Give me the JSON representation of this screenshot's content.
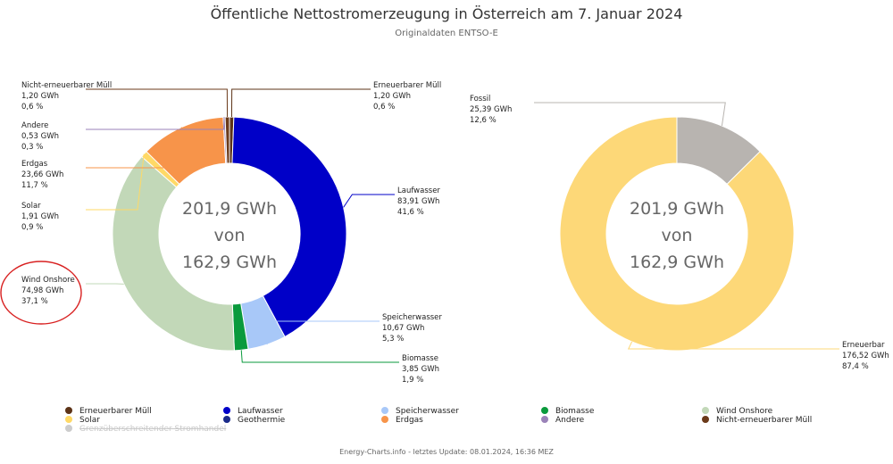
{
  "title": "Öffentliche Nettostromerzeugung in Österreich am 7. Januar 2024",
  "subtitle": "Originaldaten ENTSO-E",
  "footer": "Energy-Charts.info - letztes Update: 08.01.2024, 16:36 MEZ",
  "chart_data": [
    {
      "type": "pie",
      "variant": "donut",
      "center_text": [
        "201,9 GWh",
        "von",
        "162,9 GWh"
      ],
      "slices": [
        {
          "name": "Erneuerbarer Müll",
          "value": 1.2,
          "value_text": "1,20 GWh",
          "percent_text": "0,6 %",
          "color": "#5c3317"
        },
        {
          "name": "Laufwasser",
          "value": 83.91,
          "value_text": "83,91 GWh",
          "percent_text": "41,6 %",
          "color": "#0000c8"
        },
        {
          "name": "Speicherwasser",
          "value": 10.67,
          "value_text": "10,67 GWh",
          "percent_text": "5,3 %",
          "color": "#a8c8f8"
        },
        {
          "name": "Biomasse",
          "value": 3.85,
          "value_text": "3,85 GWh",
          "percent_text": "1,9 %",
          "color": "#0a9a3c"
        },
        {
          "name": "Wind Onshore",
          "value": 74.98,
          "value_text": "74,98 GWh",
          "percent_text": "37,1 %",
          "color": "#c2d8b8",
          "highlighted": true
        },
        {
          "name": "Solar",
          "value": 1.91,
          "value_text": "1,91 GWh",
          "percent_text": "0,9 %",
          "color": "#ffd966"
        },
        {
          "name": "Erdgas",
          "value": 23.66,
          "value_text": "23,66 GWh",
          "percent_text": "11,7 %",
          "color": "#f7944a"
        },
        {
          "name": "Andere",
          "value": 0.53,
          "value_text": "0,53 GWh",
          "percent_text": "0,3 %",
          "color": "#9a82b8"
        },
        {
          "name": "Nicht-erneuerbarer Müll",
          "value": 1.2,
          "value_text": "1,20 GWh",
          "percent_text": "0,6 %",
          "color": "#6b3a1a"
        }
      ]
    },
    {
      "type": "pie",
      "variant": "donut",
      "center_text": [
        "201,9 GWh",
        "von",
        "162,9 GWh"
      ],
      "slices": [
        {
          "name": "Fossil",
          "value": 25.39,
          "value_text": "25,39 GWh",
          "percent_text": "12,6 %",
          "color": "#b8b4b0"
        },
        {
          "name": "Erneuerbar",
          "value": 176.52,
          "value_text": "176,52 GWh",
          "percent_text": "87,4 %",
          "color": "#fdd878"
        }
      ]
    }
  ],
  "legend": {
    "items": [
      {
        "name": "Erneuerbarer Müll",
        "color": "#5c3317"
      },
      {
        "name": "Laufwasser",
        "color": "#0000c8"
      },
      {
        "name": "Speicherwasser",
        "color": "#a8c8f8"
      },
      {
        "name": "Biomasse",
        "color": "#0a9a3c"
      },
      {
        "name": "Wind Onshore",
        "color": "#c2d8b8"
      },
      {
        "name": "Solar",
        "color": "#ffd966"
      },
      {
        "name": "Geothermie",
        "color": "#1a2a8a"
      },
      {
        "name": "Erdgas",
        "color": "#f7944a"
      },
      {
        "name": "Andere",
        "color": "#9a82b8"
      },
      {
        "name": "Nicht-erneuerbarer Müll",
        "color": "#6b3a1a"
      },
      {
        "name": "Grenzüberschreitender Stromhandel",
        "color": "#cccccc",
        "inactive": true
      }
    ]
  }
}
